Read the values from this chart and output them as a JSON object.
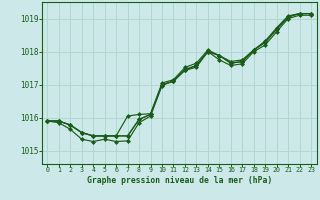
{
  "title": "Graphe pression niveau de la mer (hPa)",
  "bg_color": "#cce8e8",
  "grid_color": "#aed4cc",
  "line_color": "#1a5c1a",
  "marker_color": "#1a5c1a",
  "xlim": [
    -0.5,
    23.5
  ],
  "ylim": [
    1014.6,
    1019.5
  ],
  "yticks": [
    1015,
    1016,
    1017,
    1018,
    1019
  ],
  "xticks": [
    0,
    1,
    2,
    3,
    4,
    5,
    6,
    7,
    8,
    9,
    10,
    11,
    12,
    13,
    14,
    15,
    16,
    17,
    18,
    19,
    20,
    21,
    22,
    23
  ],
  "series": [
    [
      1015.9,
      1015.9,
      1015.75,
      1015.55,
      1015.45,
      1015.45,
      1015.45,
      1015.45,
      1015.95,
      1016.1,
      1017.0,
      1017.1,
      1017.45,
      1017.55,
      1018.0,
      1017.85,
      1017.65,
      1017.7,
      1018.05,
      1018.25,
      1018.65,
      1019.05,
      1019.15,
      1019.15
    ],
    [
      1015.9,
      1015.9,
      1015.75,
      1015.55,
      1015.45,
      1015.45,
      1015.45,
      1015.45,
      1015.95,
      1016.1,
      1017.0,
      1017.1,
      1017.45,
      1017.55,
      1018.0,
      1017.85,
      1017.65,
      1017.7,
      1018.05,
      1018.25,
      1018.65,
      1019.05,
      1019.15,
      1019.15
    ],
    [
      1015.9,
      1015.9,
      1015.75,
      1015.55,
      1015.45,
      1015.45,
      1015.45,
      1016.05,
      1016.1,
      1016.1,
      1017.05,
      1017.15,
      1017.55,
      1017.65,
      1018.05,
      1017.85,
      1017.7,
      1017.75,
      1018.05,
      1018.3,
      1018.7,
      1019.05,
      1019.15,
      1019.15
    ],
    [
      1015.9,
      1015.85,
      1015.7,
      1015.4,
      1015.35,
      1015.35,
      1015.35,
      1016.0,
      1016.1,
      1016.15,
      1017.05,
      1017.15,
      1017.55,
      1017.65,
      1018.05,
      1017.9,
      1017.7,
      1017.75,
      1018.05,
      1018.3,
      1018.7,
      1019.1,
      1019.15,
      1019.15
    ]
  ],
  "series_diverging": [
    1015.9,
    1015.85,
    1015.65,
    1015.35,
    1015.3,
    1015.35,
    1015.3,
    1015.35,
    1015.9,
    1016.05,
    1016.95,
    1017.15,
    1017.45,
    1017.55,
    1018.0,
    1017.75,
    1017.6,
    1017.65,
    1018.0,
    1018.2,
    1018.6,
    1019.0,
    1019.1,
    1019.1
  ]
}
